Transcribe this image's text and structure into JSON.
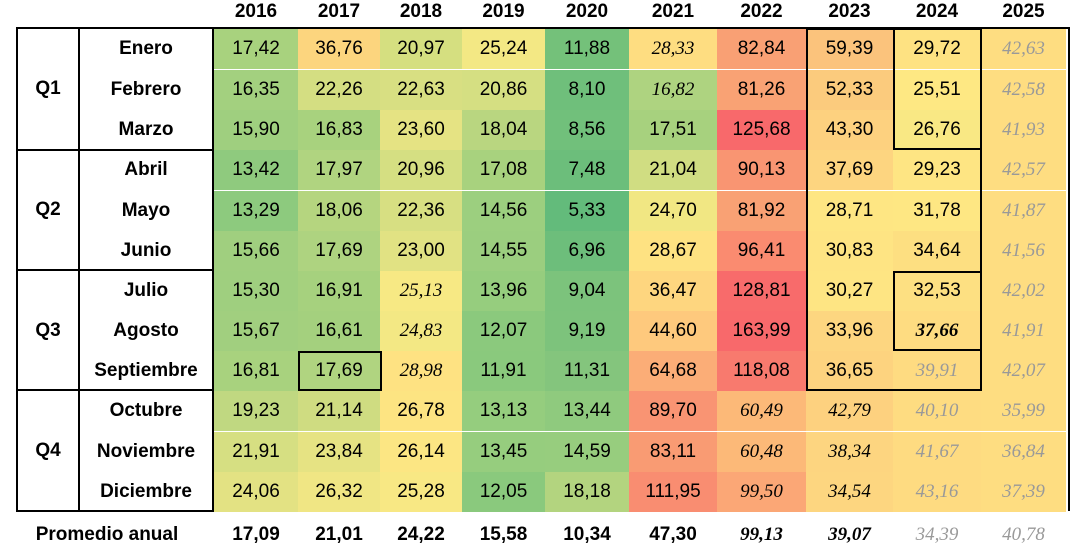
{
  "years": [
    "2016",
    "2017",
    "2018",
    "2019",
    "2020",
    "2021",
    "2022",
    "2023",
    "2024",
    "2025"
  ],
  "quarters": [
    "Q1",
    "Q2",
    "Q3",
    "Q4"
  ],
  "months": [
    "Enero",
    "Febrero",
    "Marzo",
    "Abril",
    "Mayo",
    "Junio",
    "Julio",
    "Agosto",
    "Septiembre",
    "Octubre",
    "Noviembre",
    "Diciembre"
  ],
  "values": [
    [
      "17,42",
      "36,76",
      "20,97",
      "25,24",
      "11,88",
      "28,33",
      "82,84",
      "59,39",
      "29,72",
      "42,63"
    ],
    [
      "16,35",
      "22,26",
      "22,63",
      "20,86",
      "8,10",
      "16,82",
      "81,26",
      "52,33",
      "25,51",
      "42,58"
    ],
    [
      "15,90",
      "16,83",
      "23,60",
      "18,04",
      "8,56",
      "17,51",
      "125,68",
      "43,30",
      "26,76",
      "41,93"
    ],
    [
      "13,42",
      "17,97",
      "20,96",
      "17,08",
      "7,48",
      "21,04",
      "90,13",
      "37,69",
      "29,23",
      "42,57"
    ],
    [
      "13,29",
      "18,06",
      "22,36",
      "14,56",
      "5,33",
      "24,70",
      "81,92",
      "28,71",
      "31,78",
      "41,87"
    ],
    [
      "15,66",
      "17,69",
      "23,00",
      "14,55",
      "6,96",
      "28,67",
      "96,41",
      "30,83",
      "34,64",
      "41,56"
    ],
    [
      "15,30",
      "16,91",
      "25,13",
      "13,96",
      "9,04",
      "36,47",
      "128,81",
      "30,27",
      "32,53",
      "42,02"
    ],
    [
      "15,67",
      "16,61",
      "24,83",
      "12,07",
      "9,19",
      "44,60",
      "163,99",
      "33,96",
      "37,66",
      "41,91"
    ],
    [
      "16,81",
      "17,69",
      "28,98",
      "11,91",
      "11,31",
      "64,68",
      "118,08",
      "36,65",
      "39,91",
      "42,07"
    ],
    [
      "19,23",
      "21,14",
      "26,78",
      "13,13",
      "13,44",
      "89,70",
      "60,49",
      "42,79",
      "40,10",
      "35,99"
    ],
    [
      "21,91",
      "23,84",
      "26,14",
      "13,45",
      "14,59",
      "83,11",
      "60,48",
      "38,34",
      "41,67",
      "36,84"
    ],
    [
      "24,06",
      "26,32",
      "25,28",
      "12,05",
      "18,18",
      "111,95",
      "99,50",
      "34,54",
      "43,16",
      "37,39"
    ]
  ],
  "cell_style": [
    [
      "n",
      "n",
      "n",
      "n",
      "n",
      "p",
      "n",
      "n",
      "n",
      "f"
    ],
    [
      "n",
      "n",
      "n",
      "n",
      "n",
      "p",
      "n",
      "n",
      "n",
      "f"
    ],
    [
      "n",
      "n",
      "n",
      "n",
      "n",
      "n",
      "n",
      "n",
      "n",
      "f"
    ],
    [
      "n",
      "n",
      "n",
      "n",
      "n",
      "n",
      "n",
      "n",
      "n",
      "f"
    ],
    [
      "n",
      "n",
      "n",
      "n",
      "n",
      "n",
      "n",
      "n",
      "n",
      "f"
    ],
    [
      "n",
      "n",
      "n",
      "n",
      "n",
      "n",
      "n",
      "n",
      "n",
      "f"
    ],
    [
      "n",
      "n",
      "p",
      "n",
      "n",
      "n",
      "n",
      "n",
      "n",
      "f"
    ],
    [
      "n",
      "n",
      "p",
      "n",
      "n",
      "n",
      "n",
      "n",
      "b",
      "f"
    ],
    [
      "n",
      "n",
      "p",
      "n",
      "n",
      "n",
      "n",
      "n",
      "f",
      "f"
    ],
    [
      "n",
      "n",
      "n",
      "n",
      "n",
      "n",
      "p",
      "p",
      "f",
      "f"
    ],
    [
      "n",
      "n",
      "n",
      "n",
      "n",
      "n",
      "p",
      "p",
      "f",
      "f"
    ],
    [
      "n",
      "n",
      "n",
      "n",
      "n",
      "n",
      "p",
      "p",
      "f",
      "f"
    ]
  ],
  "colors": [
    [
      "#a8d27e",
      "#fcd57e",
      "#d5df80",
      "#f3e884",
      "#74c17a",
      "#fedd81",
      "#f9a074",
      "#fbc37c",
      "#fee282",
      "#fedd81"
    ],
    [
      "#a3d07f",
      "#d4de82",
      "#d8df82",
      "#d5df82",
      "#6fbf7b",
      "#aed380",
      "#f9a274",
      "#fbcb7d",
      "#fee883",
      "#fedd81"
    ],
    [
      "#9fcf7f",
      "#a8d27e",
      "#e5e383",
      "#b9d680",
      "#71c07b",
      "#a7d17e",
      "#f8696b",
      "#fdd17f",
      "#f9e884",
      "#fedd81"
    ],
    [
      "#8fca7e",
      "#b0d480",
      "#d5df82",
      "#a8d27e",
      "#6cbe7b",
      "#d0dd82",
      "#f99572",
      "#fdd580",
      "#fee583",
      "#fedd81"
    ],
    [
      "#8dca7e",
      "#b5d57f",
      "#d7df82",
      "#9ccf7f",
      "#63bb7b",
      "#f1e783",
      "#f9a174",
      "#fee683",
      "#fee783",
      "#fedd81"
    ],
    [
      "#a0cf7f",
      "#aed380",
      "#e1e283",
      "#9bce7f",
      "#6dbe7b",
      "#fee282",
      "#fa8b70",
      "#fee483",
      "#fddf81",
      "#fedd81"
    ],
    [
      "#9fcf7f",
      "#a6d17e",
      "#f7e984",
      "#96cd7e",
      "#7cc37c",
      "#fed67f",
      "#f86b6b",
      "#fee583",
      "#fde082",
      "#fedd81"
    ],
    [
      "#a1cf7f",
      "#a4d07e",
      "#f3e884",
      "#8bc97d",
      "#7dc37c",
      "#fec97d",
      "#f8696b",
      "#fdd680",
      "#fedc81",
      "#fedd81"
    ],
    [
      "#a8d27e",
      "#b0d480",
      "#fee282",
      "#8ac97d",
      "#84c57d",
      "#fbad77",
      "#f87a6e",
      "#fdd37f",
      "#fedb81",
      "#fedd81"
    ],
    [
      "#c0d881",
      "#cfdc81",
      "#fde482",
      "#95cd7e",
      "#8fca7e",
      "#f99473",
      "#fcb978",
      "#fdd17f",
      "#fedc81",
      "#fedd81"
    ],
    [
      "#d6df82",
      "#e6e383",
      "#fce683",
      "#96cd7e",
      "#97cd7e",
      "#f99b73",
      "#fcb978",
      "#fdd580",
      "#fedb81",
      "#fedd81"
    ],
    [
      "#e3e283",
      "#f0e684",
      "#f8e884",
      "#8ac97d",
      "#b3d47f",
      "#f98d71",
      "#fba776",
      "#fdd680",
      "#fedb81",
      "#fedd81"
    ]
  ],
  "average": {
    "label": "Promedio anual",
    "values": [
      "17,09",
      "21,01",
      "24,22",
      "15,58",
      "10,34",
      "47,30",
      "99,13",
      "39,07",
      "34,39",
      "40,78"
    ],
    "styles": [
      "n",
      "n",
      "n",
      "n",
      "n",
      "n",
      "p",
      "p",
      "f",
      "f"
    ]
  }
}
